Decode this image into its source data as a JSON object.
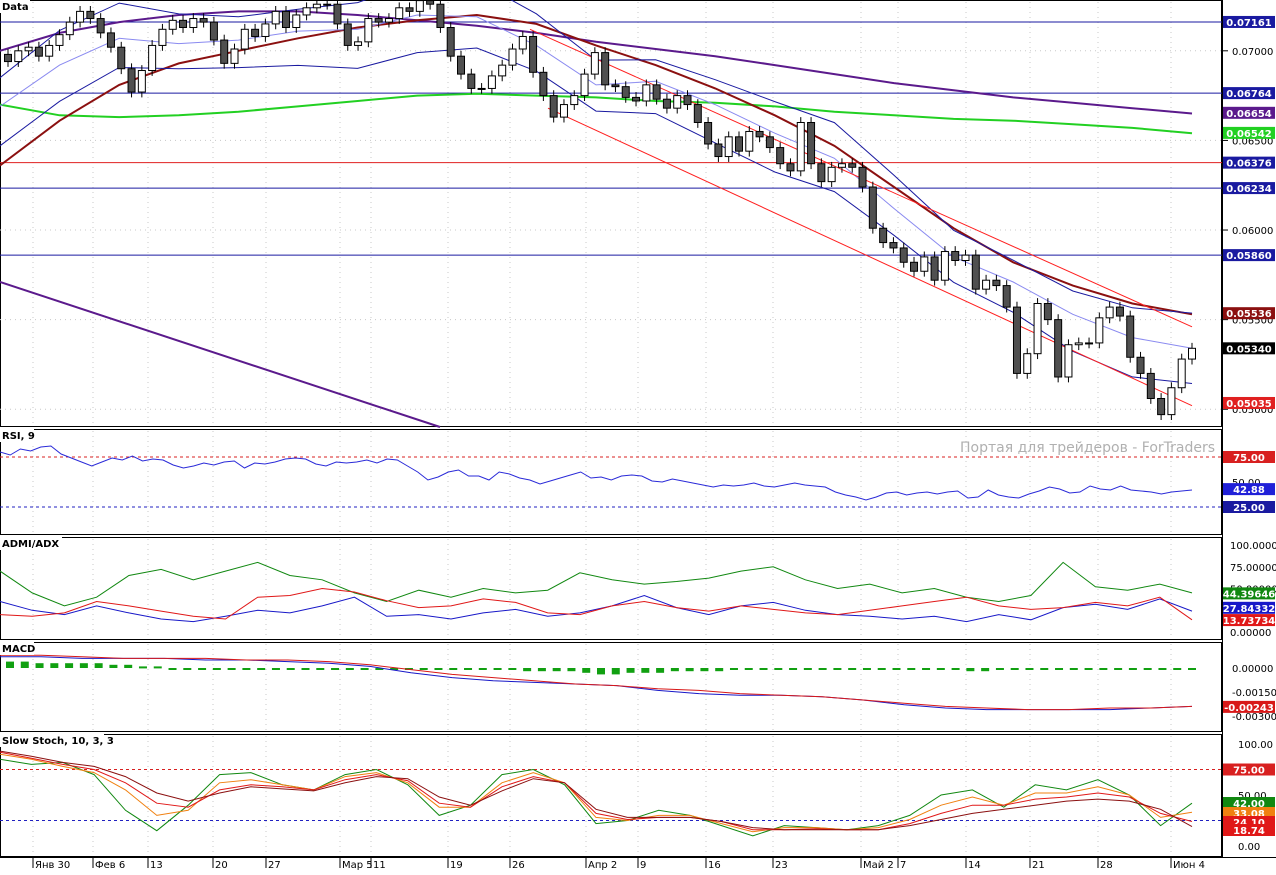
{
  "watermark": "Портая для трейдеров - ForTraders",
  "colors": {
    "ma_dark": "#5b1a8c",
    "ma_green": "#22d022",
    "ma_red": "#8b1010",
    "bollinger": "#1a1aa0",
    "mid_band": "#8a8af0",
    "channel": "#ff2020",
    "hline_blue": "#1a1aa0",
    "hline_red": "#e02020",
    "bull_body": "#ffffff",
    "bear_body": "#505050",
    "rsi": "#2a2ad8",
    "adx_green": "#118811",
    "adx_blue": "#1818c8",
    "adx_red": "#e01818",
    "macd_hist": "#11a011",
    "macd_line": "#1818c8",
    "macd_signal": "#d81818",
    "stoch_green": "#118811",
    "stoch_orange": "#f08010",
    "stoch_red": "#e01818",
    "stoch_dark": "#8b1010"
  },
  "panels": [
    {
      "name": "price",
      "label": "Data"
    },
    {
      "name": "rsi",
      "label": "RSI, 9"
    },
    {
      "name": "admi",
      "label": "ADMI/ADX"
    },
    {
      "name": "macd",
      "label": "MACD"
    },
    {
      "name": "stoch",
      "label": "Slow Stoch, 10, 3, 3"
    }
  ],
  "x_axis_labels": [
    "Янв 30",
    "Фев 6",
    "13",
    "20",
    "27",
    "Мар 5",
    "11",
    "19",
    "26",
    "Апр 2",
    "9",
    "16",
    "23",
    "Май 2",
    "7",
    "14",
    "21",
    "28",
    "Июн 4"
  ],
  "chart_data": [
    {
      "type": "candlestick",
      "panel": "Data",
      "y_ticks": [
        "0.07000",
        "0.06500",
        "0.06000",
        "0.05500",
        "0.05000"
      ],
      "ylim": [
        0.0494,
        0.0725
      ],
      "hlines": [
        {
          "value": "0.07161",
          "color": "blue"
        },
        {
          "value": "0.06764",
          "color": "blue"
        },
        {
          "value": "0.06376",
          "color": "red"
        },
        {
          "value": "0.06234",
          "color": "blue"
        },
        {
          "value": "0.05860",
          "color": "blue"
        }
      ],
      "tags": [
        {
          "text": "0.06654",
          "color": "#5b1a8c"
        },
        {
          "text": "0.06542",
          "color": "#22d022"
        },
        {
          "text": "0.05536",
          "color": "#8b1010"
        },
        {
          "text": "0.05340",
          "color": "#000000"
        },
        {
          "text": "0.05035",
          "color": "#e02020"
        }
      ],
      "closes": [
        0.0694,
        0.07,
        0.0702,
        0.0697,
        0.0703,
        0.0709,
        0.0716,
        0.0722,
        0.0718,
        0.071,
        0.0702,
        0.069,
        0.0677,
        0.0689,
        0.0703,
        0.0712,
        0.0717,
        0.0713,
        0.0718,
        0.0716,
        0.0706,
        0.0693,
        0.0701,
        0.0712,
        0.0708,
        0.0715,
        0.0722,
        0.0713,
        0.072,
        0.0724,
        0.0726,
        0.0726,
        0.0715,
        0.0703,
        0.0705,
        0.0718,
        0.0716,
        0.0718,
        0.0724,
        0.0722,
        0.0728,
        0.0726,
        0.0713,
        0.0697,
        0.0687,
        0.0679,
        0.0679,
        0.0686,
        0.0692,
        0.0701,
        0.0708,
        0.0688,
        0.0675,
        0.0663,
        0.067,
        0.0675,
        0.0687,
        0.0699,
        0.0681,
        0.068,
        0.0674,
        0.0672,
        0.0681,
        0.0673,
        0.0668,
        0.0675,
        0.067,
        0.066,
        0.0648,
        0.0641,
        0.0652,
        0.0644,
        0.0655,
        0.0652,
        0.0646,
        0.0637,
        0.0633,
        0.066,
        0.0637,
        0.0627,
        0.0635,
        0.0637,
        0.0635,
        0.0624,
        0.0601,
        0.0593,
        0.059,
        0.0582,
        0.0577,
        0.0585,
        0.0572,
        0.0588,
        0.0583,
        0.0586,
        0.0567,
        0.0572,
        0.0569,
        0.0557,
        0.052,
        0.0531,
        0.0559,
        0.055,
        0.0518,
        0.0536,
        0.0537,
        0.0537,
        0.0551,
        0.0557,
        0.0552,
        0.0529,
        0.052,
        0.0506,
        0.0497,
        0.0512,
        0.0528,
        0.0534
      ],
      "series": [
        {
          "name": "",
          "color_key": "ma_dark",
          "values": [
            0.07,
            0.071,
            0.0716,
            0.072,
            0.0722,
            0.0722,
            0.072,
            0.0717,
            0.0714,
            0.071,
            0.0705,
            0.0701,
            0.0697,
            0.0692,
            0.0687,
            0.0682,
            0.0678,
            0.0674,
            0.0671,
            0.0668,
            0.0665
          ]
        },
        {
          "name": "",
          "color_key": "ma_green",
          "values": [
            0.067,
            0.0664,
            0.0663,
            0.0664,
            0.0666,
            0.0669,
            0.0672,
            0.0675,
            0.0676,
            0.0675,
            0.0674,
            0.0672,
            0.0671,
            0.0669,
            0.0666,
            0.0664,
            0.0662,
            0.0661,
            0.0659,
            0.0657,
            0.0654
          ]
        },
        {
          "name": "",
          "color_key": "ma_red",
          "values": [
            0.0636,
            0.0661,
            0.0681,
            0.0693,
            0.07,
            0.0707,
            0.0713,
            0.0717,
            0.072,
            0.0715,
            0.0703,
            0.0692,
            0.0679,
            0.0664,
            0.0647,
            0.0624,
            0.0601,
            0.0582,
            0.0569,
            0.0559,
            0.0553
          ]
        },
        {
          "name": "",
          "color_key": "mid_band",
          "values": [
            0.0669,
            0.0692,
            0.0707,
            0.0704,
            0.0706,
            0.0711,
            0.0712,
            0.072,
            0.0719,
            0.0703,
            0.0681,
            0.0683,
            0.067,
            0.0654,
            0.064,
            0.0612,
            0.0585,
            0.0571,
            0.0553,
            0.054,
            0.0534
          ]
        }
      ],
      "channel_upper": [
        0.0712,
        0.0546
      ],
      "channel_lower": [
        0.0668,
        0.0502
      ]
    },
    {
      "type": "line",
      "panel": "RSI, 9",
      "ylim": [
        0,
        100
      ],
      "levels": [
        "75.00",
        "25.00"
      ],
      "y_ticks": [
        "50.00"
      ],
      "tag": "42.88",
      "series": [
        {
          "name": "",
          "values": [
            80,
            77,
            83,
            81,
            85,
            86,
            78,
            74,
            70,
            66,
            70,
            74,
            72,
            76,
            71,
            73,
            72,
            67,
            64,
            66,
            69,
            67,
            70,
            71,
            64,
            69,
            68,
            70,
            73,
            74,
            73,
            68,
            66,
            70,
            69,
            70,
            72,
            69,
            73,
            72,
            66,
            60,
            52,
            55,
            60,
            62,
            56,
            56,
            52,
            60,
            58,
            54,
            52,
            48,
            51,
            54,
            57,
            60,
            54,
            55,
            52,
            56,
            57,
            56,
            51,
            50,
            53,
            51,
            49,
            47,
            45,
            47,
            46,
            47,
            49,
            46,
            45,
            47,
            49,
            47,
            46,
            45,
            40,
            37,
            35,
            32,
            35,
            39,
            40,
            37,
            39,
            40,
            38,
            40,
            41,
            34,
            35,
            42,
            37,
            35,
            34,
            38,
            41,
            45,
            43,
            39,
            40,
            46,
            43,
            42,
            46,
            42,
            41,
            40,
            38,
            40,
            41,
            42
          ]
        }
      ]
    },
    {
      "type": "line",
      "panel": "ADMI/ADX",
      "ylim": [
        0,
        100
      ],
      "y_ticks": [
        "100.00000",
        "75.00000",
        "50.00000",
        "0.00000"
      ],
      "tags": [
        "44.39646",
        "27.84332",
        "13.73734"
      ],
      "series": [
        {
          "name": "",
          "color_key": "adx_green",
          "values": [
            70,
            45,
            30,
            40,
            65,
            72,
            60,
            70,
            80,
            65,
            60,
            45,
            35,
            48,
            40,
            50,
            45,
            48,
            68,
            60,
            55,
            58,
            62,
            70,
            75,
            60,
            50,
            55,
            45,
            50,
            40,
            35,
            42,
            80,
            52,
            48,
            55,
            45
          ]
        },
        {
          "name": "",
          "color_key": "adx_blue",
          "values": [
            35,
            25,
            20,
            30,
            22,
            15,
            12,
            18,
            25,
            22,
            30,
            40,
            18,
            20,
            15,
            22,
            26,
            18,
            22,
            30,
            42,
            28,
            20,
            30,
            34,
            25,
            20,
            18,
            15,
            18,
            12,
            20,
            14,
            28,
            32,
            26,
            38,
            24
          ]
        },
        {
          "name": "",
          "color_key": "adx_red",
          "values": [
            20,
            18,
            22,
            35,
            30,
            24,
            18,
            15,
            40,
            42,
            50,
            46,
            36,
            28,
            30,
            38,
            34,
            22,
            20,
            30,
            35,
            28,
            24,
            30,
            26,
            22,
            20,
            25,
            30,
            35,
            40,
            30,
            26,
            28,
            34,
            30,
            40,
            14
          ]
        }
      ]
    },
    {
      "type": "bar+line",
      "panel": "MACD",
      "y_ticks": [
        "0.00000",
        "-0.00150",
        "-0.00300"
      ],
      "tag": "-0.00243",
      "histogram": [
        0.0004,
        0.0004,
        0.0003,
        0.0003,
        0.0003,
        0.0003,
        0.0003,
        0.0002,
        0.0002,
        0.0001,
        0.0001,
        0.0,
        -0.0001,
        -0.0001,
        -0.0001,
        -0.0001,
        -0.0001,
        -0.0001,
        -0.0001,
        -0.0001,
        -0.0001,
        -0.0001,
        -0.0001,
        -0.0001,
        -0.0001,
        -0.0001,
        -0.0001,
        -0.0001,
        -0.0001,
        -0.0001,
        -0.0001,
        -0.0001,
        -0.0001,
        -0.0001,
        -0.0001,
        -0.0002,
        -0.0002,
        -0.0002,
        -0.0002,
        -0.0003,
        -0.0004,
        -0.0004,
        -0.0003,
        -0.0003,
        -0.0003,
        -0.0002,
        -0.0002,
        -0.0002,
        -0.0002,
        -0.0001,
        -0.0001,
        -0.0001,
        -0.0001,
        -0.0001,
        -0.0001,
        -0.0001,
        -0.0001,
        -0.0001,
        -0.0001,
        -0.0001,
        -0.0001,
        -0.0001,
        -0.0001,
        -0.0001,
        -0.0001,
        -0.0002,
        -0.0002,
        -0.0001,
        -0.0001,
        -0.0001,
        -0.0001,
        -0.0001,
        -0.0001,
        -0.0001,
        -0.0001,
        -0.0001,
        -0.0001,
        -0.0001,
        -0.0001,
        -0.0001,
        -0.0001
      ],
      "series": [
        {
          "name": "",
          "color_key": "macd_line",
          "values": [
            0.0007,
            0.0007,
            0.0006,
            0.0006,
            0.0006,
            0.0005,
            0.0005,
            0.0004,
            0.0003,
            0.0001,
            -0.0003,
            -0.0006,
            -0.0008,
            -0.0009,
            -0.001,
            -0.0011,
            -0.0014,
            -0.0016,
            -0.0017,
            -0.0017,
            -0.0018,
            -0.002,
            -0.0023,
            -0.0025,
            -0.0026,
            -0.0026,
            -0.0026,
            -0.0026,
            -0.0025,
            -0.0024
          ]
        },
        {
          "name": "",
          "color_key": "macd_signal",
          "values": [
            0.0008,
            0.0008,
            0.0007,
            0.0006,
            0.0006,
            0.0006,
            0.0005,
            0.0005,
            0.0004,
            0.0002,
            -0.0001,
            -0.0004,
            -0.0006,
            -0.0008,
            -0.001,
            -0.0011,
            -0.0013,
            -0.0014,
            -0.0016,
            -0.0017,
            -0.0018,
            -0.002,
            -0.0022,
            -0.0024,
            -0.0025,
            -0.0026,
            -0.0026,
            -0.0025,
            -0.0025,
            -0.0024
          ]
        }
      ]
    },
    {
      "type": "line",
      "panel": "Slow Stoch, 10, 3, 3",
      "ylim": [
        0,
        100
      ],
      "levels": [
        "75.00"
      ],
      "y_ticks": [
        "100.00",
        "50.00",
        "0.00"
      ],
      "tags": [
        "42.00",
        "33.08",
        "24.10",
        "18.74"
      ],
      "series": [
        {
          "name": "",
          "color_key": "stoch_green",
          "values": [
            85,
            80,
            82,
            70,
            35,
            15,
            40,
            70,
            72,
            60,
            55,
            70,
            75,
            60,
            30,
            40,
            70,
            75,
            60,
            22,
            25,
            35,
            30,
            20,
            10,
            20,
            18,
            16,
            20,
            30,
            50,
            55,
            38,
            60,
            55,
            65,
            50,
            20,
            42
          ]
        },
        {
          "name": "",
          "color_key": "stoch_orange",
          "values": [
            90,
            85,
            78,
            72,
            55,
            30,
            35,
            62,
            65,
            60,
            55,
            68,
            72,
            62,
            38,
            38,
            62,
            72,
            62,
            28,
            25,
            30,
            30,
            22,
            14,
            18,
            18,
            16,
            18,
            26,
            40,
            48,
            40,
            52,
            52,
            58,
            50,
            28,
            33
          ]
        },
        {
          "name": "",
          "color_key": "stoch_red",
          "values": [
            92,
            86,
            80,
            75,
            62,
            42,
            38,
            55,
            60,
            58,
            55,
            65,
            70,
            64,
            42,
            38,
            58,
            68,
            62,
            32,
            26,
            28,
            28,
            24,
            16,
            16,
            17,
            16,
            16,
            22,
            32,
            40,
            40,
            46,
            48,
            52,
            48,
            32,
            24
          ]
        },
        {
          "name": "",
          "color_key": "stoch_dark",
          "values": [
            93,
            88,
            82,
            78,
            68,
            52,
            44,
            52,
            58,
            56,
            54,
            62,
            68,
            66,
            48,
            40,
            54,
            66,
            62,
            36,
            28,
            28,
            28,
            24,
            18,
            16,
            16,
            16,
            16,
            20,
            26,
            32,
            36,
            40,
            44,
            46,
            44,
            36,
            19
          ]
        }
      ]
    }
  ]
}
